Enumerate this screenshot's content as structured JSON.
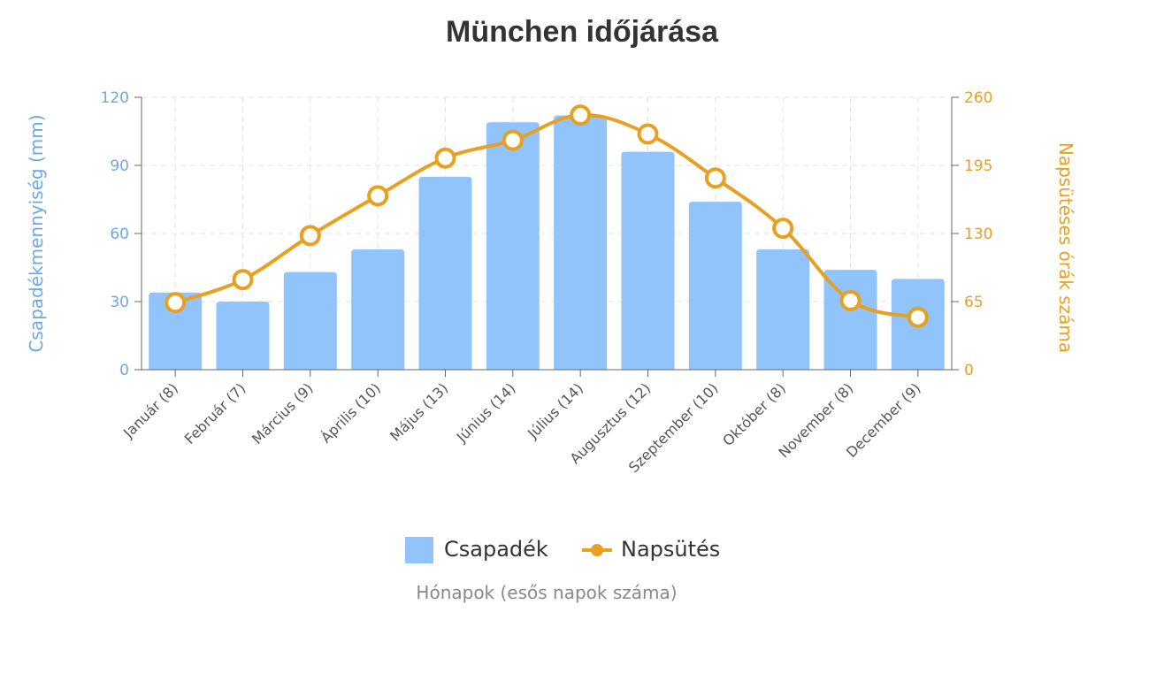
{
  "chart_data": {
    "type": "bar+line",
    "title": "München időjárása",
    "xlabel": "Hónapok (esős napok száma)",
    "ylabel_left": "Csapadékmennyiség (mm)",
    "ylabel_right": "Napsütéses órák száma",
    "categories": [
      "Január (8)",
      "Február (7)",
      "Március (9)",
      "Április (10)",
      "Május (13)",
      "Június (14)",
      "Július (14)",
      "Augusztus (12)",
      "Szeptember (10)",
      "Október (8)",
      "November (8)",
      "December (9)"
    ],
    "left_ticks": [
      "0",
      "30",
      "60",
      "90",
      "120"
    ],
    "right_ticks": [
      "0",
      "65",
      "130",
      "195",
      "260"
    ],
    "ylim_left": [
      0,
      120
    ],
    "ylim_right": [
      0,
      260
    ],
    "grid": true,
    "legend_placement": "bottom",
    "series": [
      {
        "name": "Csapadék",
        "type": "bar",
        "axis": "left",
        "color": "#90c4fa",
        "values": [
          34,
          30,
          43,
          53,
          85,
          109,
          112,
          96,
          74,
          53,
          44,
          40
        ]
      },
      {
        "name": "Napsütés",
        "type": "line",
        "axis": "right",
        "color": "#e8a020",
        "values": [
          64,
          86,
          128,
          166,
          202,
          219,
          243,
          225,
          183,
          135,
          66,
          50
        ]
      }
    ],
    "colors": {
      "left_axis": "#6aa8e8",
      "right_axis": "#e8a020"
    }
  }
}
